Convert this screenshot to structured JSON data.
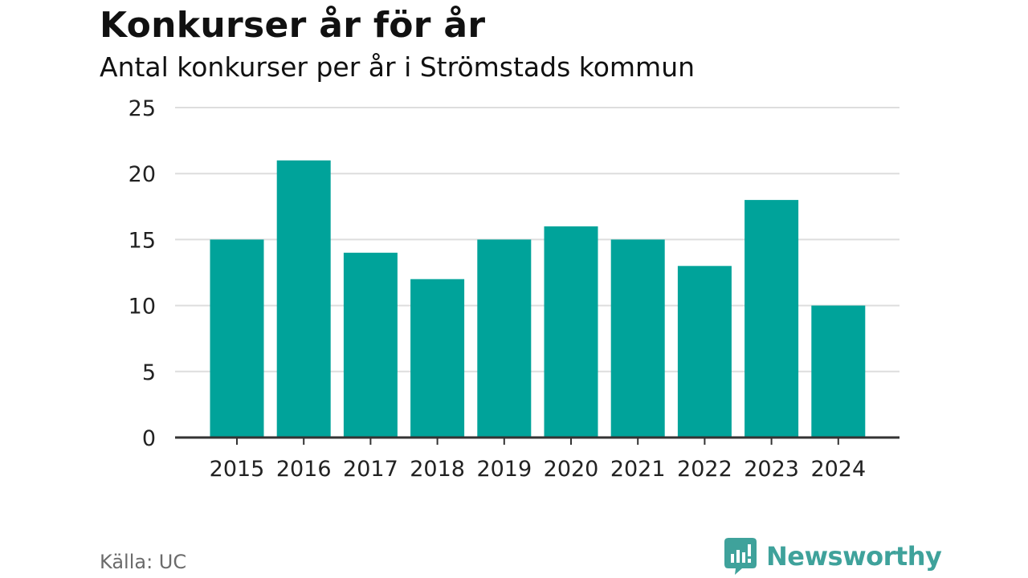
{
  "header": {
    "title": "Konkurser år för år",
    "subtitle": "Antal konkurser per år i Strömstads kommun"
  },
  "footer": {
    "source": "Källa: UC",
    "brand": "Newsworthy"
  },
  "colors": {
    "bar": "#00a39a",
    "grid": "#dddddd",
    "axis": "#333333",
    "brand": "#3fa29b"
  },
  "chart_data": {
    "type": "bar",
    "categories": [
      "2015",
      "2016",
      "2017",
      "2018",
      "2019",
      "2020",
      "2021",
      "2022",
      "2023",
      "2024"
    ],
    "values": [
      15,
      21,
      14,
      12,
      15,
      16,
      15,
      13,
      18,
      10
    ],
    "y_ticks": [
      "0",
      "5",
      "10",
      "15",
      "20",
      "25"
    ],
    "ylim": [
      0,
      25
    ],
    "grid": true,
    "legend": "none"
  }
}
